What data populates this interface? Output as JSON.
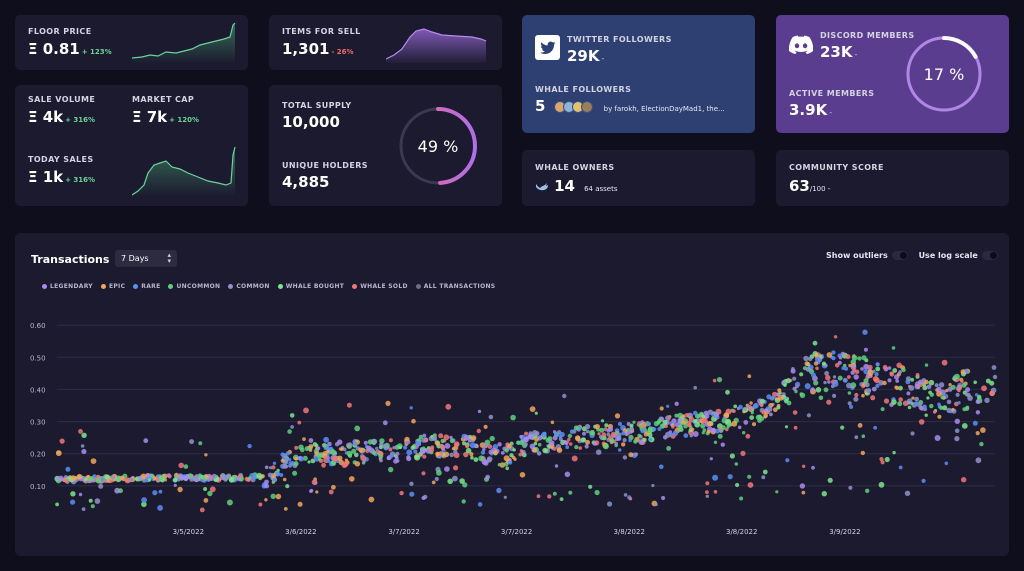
{
  "floor_price": {
    "label": "FLOOR PRICE",
    "value": "Ξ 0.81",
    "change": "+ 123%"
  },
  "items_for_sell": {
    "label": "ITEMS FOR SELL",
    "value": "1,301",
    "change": "- 26%"
  },
  "twitter": {
    "label": "TWITTER FOLLOWERS",
    "value": "29K",
    "dash": "-",
    "whale_label": "WHALE FOLLOWERS",
    "whale_count": "5",
    "whale_names": "by farokh, ElectionDayMad1, the..."
  },
  "discord": {
    "label": "DISCORD MEMBERS",
    "value": "23K",
    "dash": "-",
    "active_label": "ACTIVE MEMBERS",
    "active_value": "3.9K",
    "active_dash": "-",
    "percent_text": "17 %",
    "percent": 17
  },
  "sale_volume": {
    "label": "SALE VOLUME",
    "value": "Ξ 4k",
    "change": "+ 316%"
  },
  "market_cap": {
    "label": "MARKET CAP",
    "value": "Ξ 7k",
    "change": "+ 120%"
  },
  "today_sales": {
    "label": "TODAY SALES",
    "value": "Ξ 1k",
    "change": "+ 316%"
  },
  "supply": {
    "total_label": "TOTAL SUPPLY",
    "total_value": "10,000",
    "holders_label": "UNIQUE HOLDERS",
    "holders_value": "4,885",
    "percent_text": "49 %",
    "percent": 49
  },
  "whale_owners": {
    "label": "WHALE OWNERS",
    "value": "14",
    "assets": "64 assets"
  },
  "community_score": {
    "label": "COMMUNITY SCORE",
    "value": "63",
    "suffix": "/100",
    "dash": "-"
  },
  "transactions": {
    "title": "Transactions",
    "period": "7 Days",
    "toggle_outliers": "Show outliers",
    "toggle_log": "Use log scale"
  },
  "colors": {
    "legendary": "#a98cf0",
    "epic": "#f2a65a",
    "rare": "#5b8ef5",
    "uncommon": "#5fd07c",
    "common": "#8d93c9",
    "whale_bought": "#7ce68a",
    "whale_sold": "#f07878",
    "all": "#6f6d85"
  },
  "chart_data": {
    "type": "scatter",
    "legend": [
      {
        "name": "LEGENDARY",
        "color": "#a98cf0"
      },
      {
        "name": "EPIC",
        "color": "#f2a65a"
      },
      {
        "name": "RARE",
        "color": "#5b8ef5"
      },
      {
        "name": "UNCOMMON",
        "color": "#5fd07c"
      },
      {
        "name": "COMMON",
        "color": "#8d93c9"
      },
      {
        "name": "WHALE BOUGHT",
        "color": "#7ce68a"
      },
      {
        "name": "WHALE SOLD",
        "color": "#f07878"
      },
      {
        "name": "ALL TRANSACTIONS",
        "color": "#6f6d85"
      }
    ],
    "x_tick_labels": [
      "3/5/2022",
      "3/6/2022",
      "3/7/2022",
      "3/7/2022",
      "3/8/2022",
      "3/8/2022",
      "3/9/2022"
    ],
    "y_ticks": [
      "0.10",
      "0.20",
      "0.30",
      "0.40",
      "0.50",
      "0.60"
    ],
    "ylim": [
      0,
      0.7
    ],
    "trend": [
      [
        0.0,
        0.12
      ],
      [
        0.1,
        0.125
      ],
      [
        0.2,
        0.125
      ],
      [
        0.23,
        0.13
      ],
      [
        0.24,
        0.17
      ],
      [
        0.26,
        0.19
      ],
      [
        0.3,
        0.2
      ],
      [
        0.36,
        0.21
      ],
      [
        0.4,
        0.225
      ],
      [
        0.44,
        0.22
      ],
      [
        0.47,
        0.19
      ],
      [
        0.5,
        0.23
      ],
      [
        0.55,
        0.25
      ],
      [
        0.6,
        0.26
      ],
      [
        0.65,
        0.28
      ],
      [
        0.7,
        0.3
      ],
      [
        0.75,
        0.33
      ],
      [
        0.8,
        0.45
      ],
      [
        0.83,
        0.46
      ],
      [
        0.88,
        0.42
      ],
      [
        0.93,
        0.38
      ],
      [
        1.0,
        0.41
      ]
    ]
  }
}
